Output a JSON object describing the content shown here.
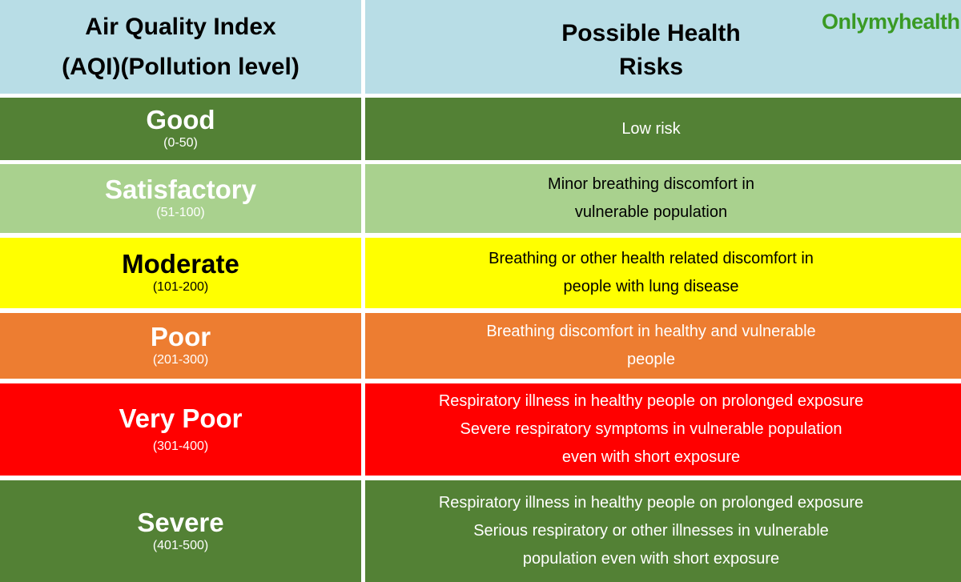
{
  "logo": "Onlymyhealth",
  "table": {
    "header": {
      "left": [
        "Air Quality Index",
        "(AQI)(Pollution level)"
      ],
      "right": [
        "Possible Health",
        "Risks"
      ]
    },
    "rows": [
      {
        "level": "Good",
        "range": "(0-50)",
        "risk": [
          "Low risk"
        ]
      },
      {
        "level": "Satisfactory",
        "range": "(51-100)",
        "risk": [
          "Minor breathing discomfort in",
          "vulnerable population"
        ]
      },
      {
        "level": "Moderate",
        "range": "(101-200)",
        "risk": [
          "Breathing or other health related discomfort in",
          "people with lung disease"
        ]
      },
      {
        "level": "Poor",
        "range": "(201-300)",
        "risk": [
          "Breathing discomfort in healthy and vulnerable",
          "people"
        ]
      },
      {
        "level": "Very Poor",
        "range": "(301-400)",
        "risk": [
          "Respiratory illness in healthy people on prolonged exposure",
          "Severe respiratory symptoms in vulnerable population",
          "even with short exposure"
        ]
      },
      {
        "level": "Severe",
        "range": "(401-500)",
        "risk": [
          "Respiratory illness in healthy people on prolonged exposure",
          "Serious respiratory or other illnesses in vulnerable",
          "population even with short exposure"
        ]
      }
    ]
  }
}
